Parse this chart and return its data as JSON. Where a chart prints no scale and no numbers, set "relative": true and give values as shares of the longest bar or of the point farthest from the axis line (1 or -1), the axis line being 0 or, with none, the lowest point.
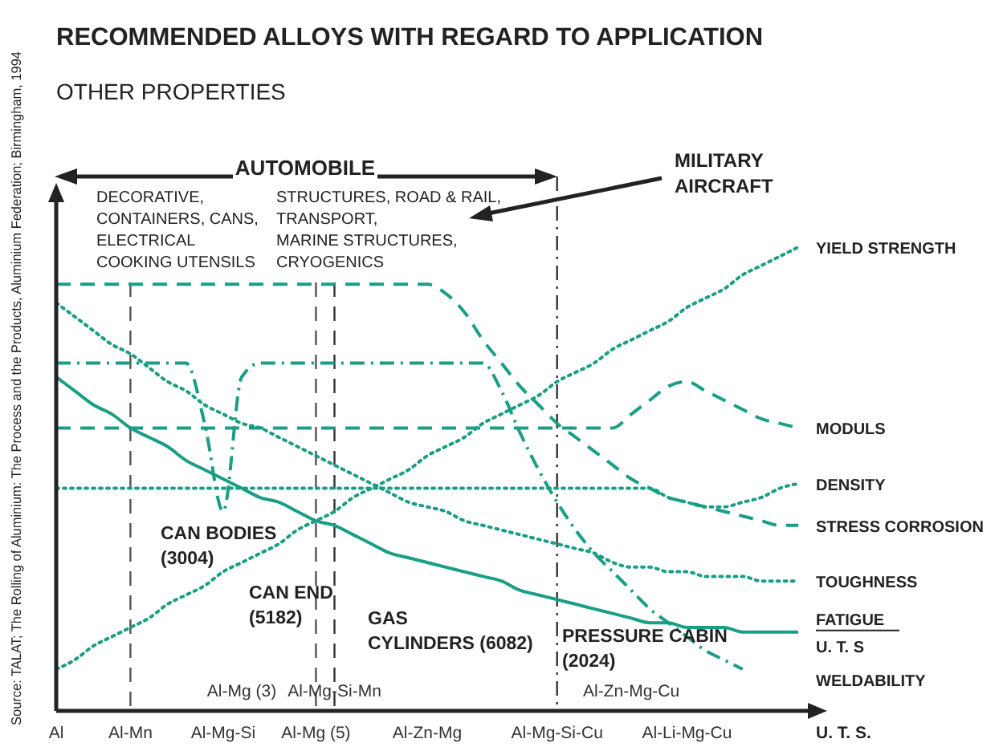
{
  "chart_data": {
    "type": "line",
    "title": "RECOMMENDED ALLOYS WITH REGARD TO APPLICATION",
    "subtitle": "OTHER PROPERTIES",
    "xlabel": "U. T. S.",
    "relative": true,
    "categories": [
      "Al",
      null,
      null,
      null,
      "Al-Mn",
      null,
      null,
      null,
      null,
      "Al-Mg-Si",
      "Al-Mg (3)",
      null,
      null,
      null,
      "Al-Mg (5)",
      "Al-Mg-Si-Mn",
      null,
      null,
      null,
      null,
      "Al-Zn-Mg",
      null,
      null,
      null,
      null,
      null,
      null,
      "Al-Mg-Si-Cu",
      null,
      null,
      null,
      "Al-Zn-Mg-Cu",
      null,
      null,
      "Al-Li-Mg-Cu",
      null,
      null,
      null,
      null,
      null,
      null
    ],
    "series": [
      {
        "name": "YIELD STRENGTH",
        "color": "#1a9e86",
        "line_style": "dotted",
        "values": [
          0.09,
          0.11,
          0.14,
          0.16,
          0.18,
          0.2,
          0.23,
          0.25,
          0.27,
          0.3,
          0.32,
          0.34,
          0.36,
          0.39,
          0.41,
          0.43,
          0.46,
          0.48,
          0.5,
          0.52,
          0.55,
          0.57,
          0.59,
          0.62,
          0.64,
          0.66,
          0.68,
          0.71,
          0.73,
          0.75,
          0.78,
          0.8,
          0.82,
          0.84,
          0.87,
          0.89,
          0.91,
          0.94,
          0.96,
          0.98,
          1
        ]
      },
      {
        "name": "MODULS",
        "color": "#1a9e86",
        "line_style": "dashed",
        "values": [
          0.61,
          0.61,
          0.61,
          0.61,
          0.61,
          0.61,
          0.61,
          0.61,
          0.61,
          0.61,
          0.61,
          0.61,
          0.61,
          0.61,
          0.61,
          0.61,
          0.61,
          0.61,
          0.61,
          0.61,
          0.61,
          0.61,
          0.61,
          0.61,
          0.61,
          0.61,
          0.61,
          0.61,
          0.61,
          0.61,
          0.61,
          0.64,
          0.67,
          0.7,
          0.71,
          0.69,
          0.67,
          0.65,
          0.63,
          0.62,
          0.61
        ]
      },
      {
        "name": "DENSITY",
        "color": "#1a9e86",
        "line_style": "dotted",
        "values": [
          0.48,
          0.48,
          0.48,
          0.48,
          0.48,
          0.48,
          0.48,
          0.48,
          0.48,
          0.48,
          0.48,
          0.48,
          0.48,
          0.48,
          0.48,
          0.48,
          0.48,
          0.48,
          0.48,
          0.48,
          0.48,
          0.48,
          0.48,
          0.48,
          0.48,
          0.48,
          0.48,
          0.48,
          0.48,
          0.48,
          0.48,
          0.48,
          0.48,
          0.46,
          0.45,
          0.44,
          0.44,
          0.45,
          0.46,
          0.48,
          0.49
        ]
      },
      {
        "name": "STRESS CORROSION",
        "color": "#1a9e86",
        "line_style": "dashed",
        "values": [
          0.92,
          0.92,
          0.92,
          0.92,
          0.92,
          0.92,
          0.92,
          0.92,
          0.92,
          0.92,
          0.92,
          0.92,
          0.92,
          0.92,
          0.92,
          0.92,
          0.92,
          0.92,
          0.92,
          0.92,
          0.92,
          0.9,
          0.86,
          0.8,
          0.75,
          0.7,
          0.66,
          0.62,
          0.59,
          0.56,
          0.53,
          0.5,
          0.48,
          0.46,
          0.45,
          0.44,
          0.43,
          0.42,
          0.41,
          0.4,
          0.4
        ]
      },
      {
        "name": "TOUGHNESS",
        "color": "#1a9e86",
        "line_style": "dotted",
        "values": [
          0.88,
          0.85,
          0.82,
          0.79,
          0.77,
          0.74,
          0.71,
          0.69,
          0.66,
          0.64,
          0.62,
          0.61,
          0.59,
          0.57,
          0.55,
          0.53,
          0.51,
          0.49,
          0.47,
          0.45,
          0.44,
          0.43,
          0.41,
          0.4,
          0.39,
          0.38,
          0.37,
          0.36,
          0.35,
          0.34,
          0.32,
          0.31,
          0.31,
          0.3,
          0.3,
          0.29,
          0.29,
          0.29,
          0.28,
          0.28,
          0.28
        ]
      },
      {
        "name": "FATIGUE\nU. T. S",
        "color": "#1a9e86",
        "line_style": "solid",
        "values": [
          0.72,
          0.69,
          0.66,
          0.64,
          0.61,
          0.59,
          0.57,
          0.54,
          0.52,
          0.5,
          0.48,
          0.46,
          0.45,
          0.43,
          0.41,
          0.4,
          0.38,
          0.36,
          0.34,
          0.33,
          0.32,
          0.31,
          0.3,
          0.29,
          0.28,
          0.26,
          0.25,
          0.24,
          0.23,
          0.22,
          0.21,
          0.2,
          0.19,
          0.19,
          0.18,
          0.18,
          0.18,
          0.17,
          0.17,
          0.17,
          0.17
        ]
      },
      {
        "name": "WELDABILITY",
        "color": "#1a9e86",
        "line_style": "dashdot",
        "values": [
          0.75,
          0.75,
          0.75,
          0.75,
          0.75,
          0.75,
          0.75,
          0.75,
          0.62,
          0.43,
          0.72,
          0.75,
          0.75,
          0.75,
          0.75,
          0.75,
          0.75,
          0.75,
          0.75,
          0.75,
          0.75,
          0.75,
          0.75,
          0.75,
          0.69,
          0.6,
          0.52,
          0.45,
          0.39,
          0.34,
          0.3,
          0.26,
          0.22,
          0.19,
          0.16,
          0.13,
          0.11,
          0.09,
          null,
          null,
          null
        ]
      }
    ],
    "ref_lines": [
      {
        "axis": "x",
        "value": "Al-Mn",
        "color": "#555555",
        "line_style": "dashed"
      },
      {
        "axis": "x",
        "value": "Al-Mg (5)",
        "color": "#555555",
        "line_style": "dashed"
      },
      {
        "axis": "x",
        "value": "Al-Mg-Si-Mn",
        "color": "#333333",
        "line_style": "dashed"
      },
      {
        "axis": "x",
        "value": "Al-Mg-Si-Cu",
        "color": "#333333",
        "line_style": "dashdot"
      }
    ],
    "annotations": [
      "Source: TALAT; The Rolling of Aluminium: The Process and the Products, Aluminium Federation; Birmingham, 1994",
      "AUTOMOBILE",
      "MILITARY\nAIRCRAFT",
      "DECORATIVE,\nCONTAINERS, CANS,\nELECTRICAL\nCOOKING UTENSILS",
      "STRUCTURES, ROAD & RAIL,\nTRANSPORT,\nMARINE STRUCTURES,\nCRYOGENICS",
      "CAN BODIES\n(3004)",
      "CAN END\n(5182)",
      "GAS\nCYLINDERS (6082)",
      "PRESSURE CABIN\n(2024)"
    ]
  }
}
